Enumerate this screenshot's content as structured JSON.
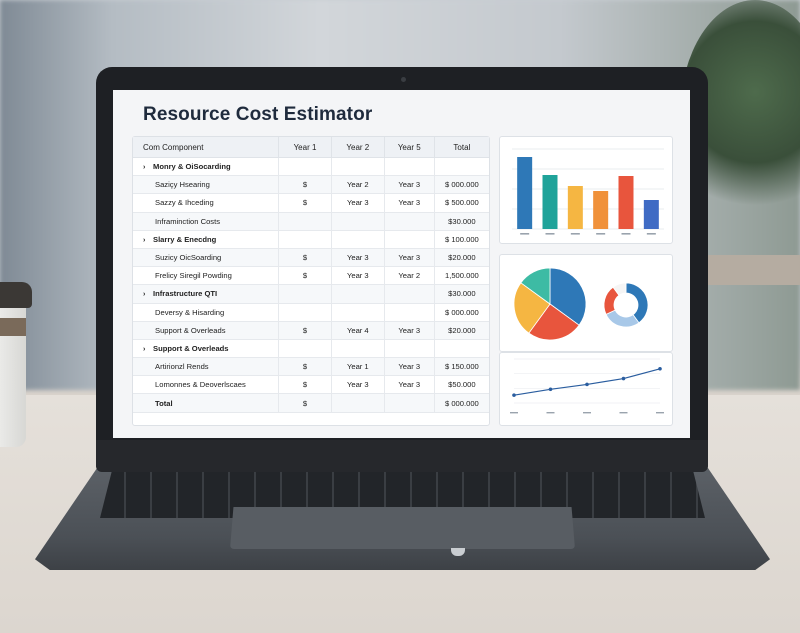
{
  "app": {
    "title": "Resource Cost Estimator"
  },
  "table": {
    "headers": [
      "Com Component",
      "Year 1",
      "Year 2",
      "Year 5",
      "Total"
    ],
    "rows": [
      {
        "label": "Monry & OiSocarding",
        "y1": "",
        "y2": "",
        "y3": "",
        "total": "",
        "chevron": "›"
      },
      {
        "label": "Saziçy Hsearing",
        "y1": "$",
        "y2": "Year 2",
        "y3": "Year 3",
        "total": "$ 000.000",
        "chevron": ""
      },
      {
        "label": "Sazzy & Ihceding",
        "y1": "$",
        "y2": "Year 3",
        "y3": "Year 3",
        "total": "$ 500.000",
        "chevron": ""
      },
      {
        "label": "Inframinction Costs",
        "y1": "",
        "y2": "",
        "y3": "",
        "total": "$30.000",
        "chevron": ""
      },
      {
        "label": "Slarry & Enecdng",
        "y1": "",
        "y2": "",
        "y3": "",
        "total": "$ 100.000",
        "chevron": "›"
      },
      {
        "label": "Suzicy OicSoarding",
        "y1": "$",
        "y2": "Year 3",
        "y3": "Year 3",
        "total": "$20.000",
        "chevron": ""
      },
      {
        "label": "Frelicy Siregil Powding",
        "y1": "$",
        "y2": "Year 3",
        "y3": "Year 2",
        "total": "1,500.000",
        "chevron": ""
      },
      {
        "label": "Infrastructure QTI",
        "y1": "",
        "y2": "",
        "y3": "",
        "total": "$30.000",
        "chevron": "›"
      },
      {
        "label": "Deversy & Hisarding",
        "y1": "",
        "y2": "",
        "y3": "",
        "total": "$ 000.000",
        "chevron": ""
      },
      {
        "label": "Support & Overleads",
        "y1": "$",
        "y2": "Year 4",
        "y3": "Year 3",
        "total": "$20.000",
        "chevron": ""
      },
      {
        "label": "Support & Overleads",
        "y1": "",
        "y2": "",
        "y3": "",
        "total": "",
        "chevron": "›"
      },
      {
        "label": "Artirionzl Rends",
        "y1": "$",
        "y2": "Year 1",
        "y3": "Year 3",
        "total": "$ 150.000",
        "chevron": ""
      },
      {
        "label": "Lomonnes & Deoverlscaes",
        "y1": "$",
        "y2": "Year 3",
        "y3": "Year 3",
        "total": "$50.000",
        "chevron": ""
      },
      {
        "label": "Total",
        "y1": "$",
        "y2": "",
        "y3": "",
        "total": "$ 000.000",
        "chevron": ""
      }
    ]
  },
  "chart_data": [
    {
      "type": "bar",
      "categories": [
        "",
        "",
        "",
        "",
        "",
        ""
      ],
      "values": [
        72,
        54,
        43,
        38,
        53,
        29
      ],
      "colors": [
        "#2e78b7",
        "#1fa39a",
        "#f5b642",
        "#f0913a",
        "#e8553d",
        "#3f6bc4"
      ],
      "ylim": [
        0,
        80
      ]
    },
    {
      "type": "pie",
      "values": [
        35,
        25,
        25,
        15
      ],
      "colors": [
        "#2e78b7",
        "#e8553d",
        "#f5b642",
        "#3dbba4"
      ]
    },
    {
      "type": "pie",
      "values": [
        40,
        28,
        22,
        10
      ],
      "colors": [
        "#2e78b7",
        "#a8c8e8",
        "#e8553d",
        "#f5f5f5"
      ]
    },
    {
      "type": "line",
      "x": [
        "1",
        "2",
        "3",
        "4",
        "5"
      ],
      "y": [
        8,
        14,
        19,
        25,
        35
      ],
      "ylim": [
        0,
        45
      ],
      "color": "#2a5d9f"
    }
  ]
}
